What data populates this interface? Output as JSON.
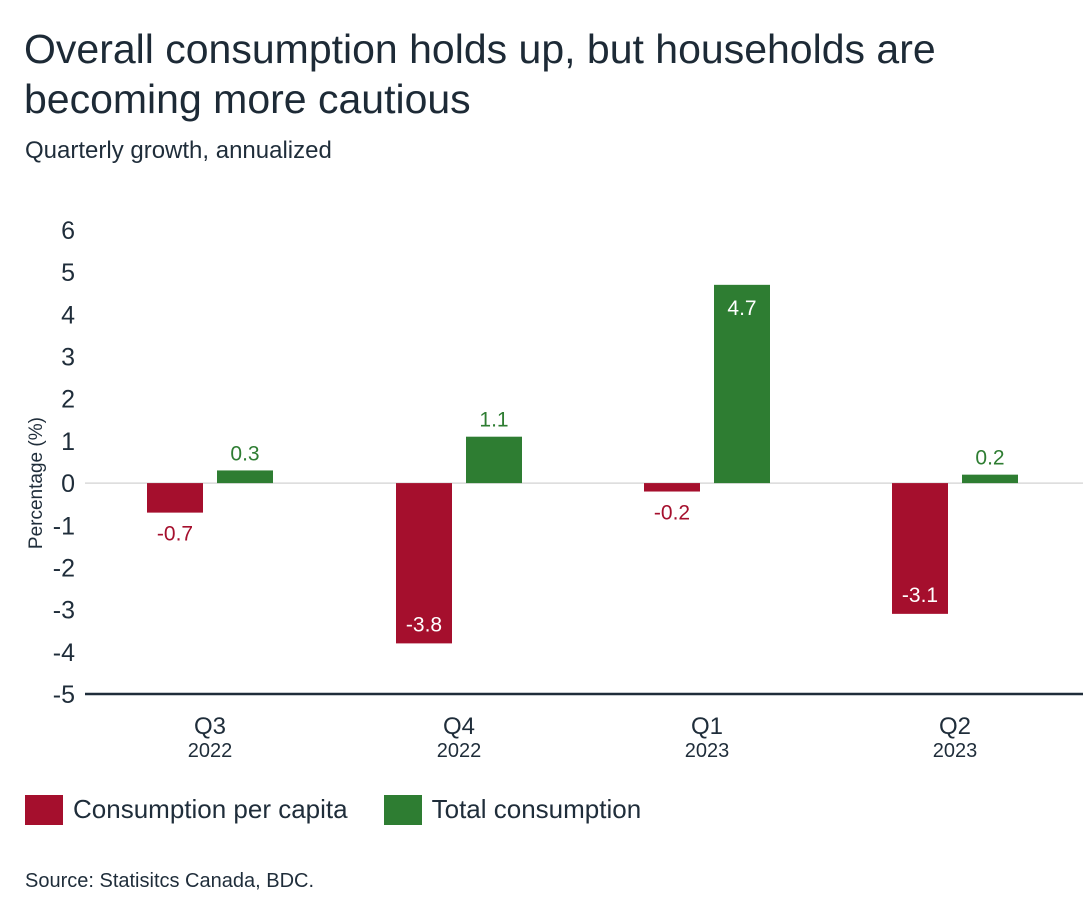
{
  "title": "Overall consumption holds up, but households are becoming more cautious",
  "subtitle": "Quarterly growth, annualized",
  "source": "Source: Statisitcs Canada, BDC.",
  "colors": {
    "per_capita": "#a50f2d",
    "total": "#2e7d32",
    "axis": "#1f2d3a",
    "zero_line": "#d9d9d9"
  },
  "chart_data": {
    "type": "bar",
    "categories": [
      "Q3",
      "Q4",
      "Q1",
      "Q2"
    ],
    "category_years": [
      "2022",
      "2022",
      "2023",
      "2023"
    ],
    "series": [
      {
        "name": "Consumption per capita",
        "values": [
          -0.7,
          -3.8,
          -0.2,
          -3.1
        ]
      },
      {
        "name": "Total consumption",
        "values": [
          0.3,
          1.1,
          4.7,
          0.2
        ]
      }
    ],
    "data_labels": [
      [
        "-0.7",
        "-3.8",
        "-0.2",
        "-3.1"
      ],
      [
        "0.3",
        "1.1",
        "4.7",
        "0.2"
      ]
    ],
    "ylabel": "Percentage (%)",
    "xlabel": "",
    "ylim": [
      -5,
      6
    ],
    "yticks": [
      "6",
      "5",
      "4",
      "3",
      "2",
      "1",
      "0",
      "-1",
      "-2",
      "-3",
      "-4",
      "-5"
    ],
    "grid": false,
    "legend_position": "bottom-left"
  }
}
